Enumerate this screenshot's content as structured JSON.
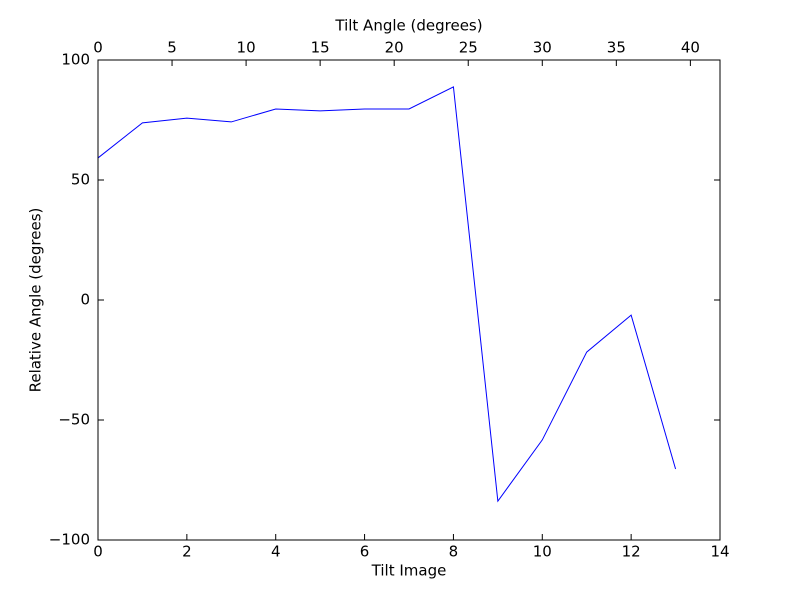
{
  "chart_data": {
    "type": "line",
    "xlabel": "Tilt Image",
    "x2label": "Tilt Angle (degrees)",
    "ylabel": "Relative Angle (degrees)",
    "x": [
      0,
      1,
      2,
      3,
      4,
      5,
      6,
      7,
      8,
      9,
      10,
      11,
      12,
      13
    ],
    "series": [
      {
        "color": "#0000ff",
        "values": [
          59.2,
          73.8,
          75.8,
          74.2,
          79.6,
          78.8,
          79.6,
          79.6,
          88.8,
          -83.8,
          -58.3,
          -21.7,
          -6.3,
          -70.4
        ]
      }
    ],
    "xlim": [
      0,
      14
    ],
    "xticks": [
      0,
      2,
      4,
      6,
      8,
      10,
      12,
      14
    ],
    "x2lim": [
      0,
      42
    ],
    "x2ticks": [
      0,
      5,
      10,
      15,
      20,
      25,
      30,
      35,
      40
    ],
    "ylim": [
      -100,
      100
    ],
    "yticks": [
      {
        "value": -100,
        "label": "−100"
      },
      {
        "value": -50,
        "label": "−50"
      },
      0,
      50,
      100
    ],
    "grid": false
  }
}
